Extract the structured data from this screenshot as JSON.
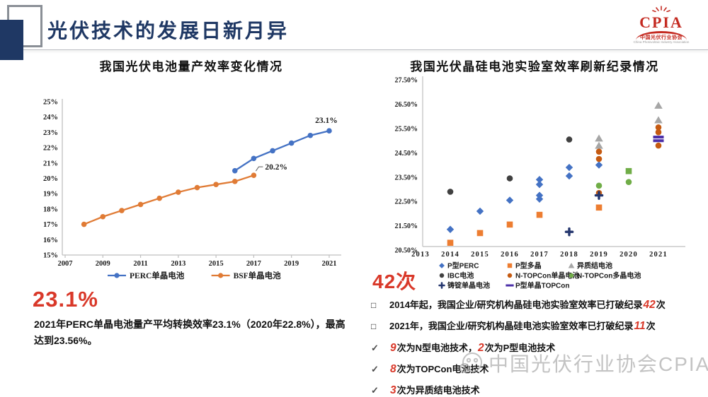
{
  "colors": {
    "accent_red": "#D93829",
    "title_navy": "#1F3864",
    "perc_blue": "#4472C4",
    "bsf_orange": "#E07B35",
    "gray_axis": "#BFBFBF"
  },
  "header": {
    "title": "光伏技术的发展日新月异",
    "logo": {
      "word": "CPIA",
      "caption_cn": "中国光伏行业协会",
      "caption_en": "China Photovoltaic Industry Association"
    }
  },
  "left_panel": {
    "chart_title": "我国光伏电池量产效率变化情况",
    "highlight": "23.1%",
    "description": "2021年PERC单晶电池量产平均转换效率23.1%（2020年22.8%），最高达到23.56%。"
  },
  "right_panel": {
    "chart_title": "我国光伏晶硅电池实验室效率刷新纪录情况",
    "highlight": "42次",
    "bullets": [
      {
        "marker": "□",
        "segments": [
          {
            "text": "2014年起，我国企业/研究机构晶硅电池实验室效率已打破纪录"
          },
          {
            "text": "42",
            "em": true
          },
          {
            "text": "次"
          }
        ]
      },
      {
        "marker": "□",
        "segments": [
          {
            "text": "2021年，我国企业/研究机构晶硅电池实验室效率已打破纪录"
          },
          {
            "text": "11",
            "em": true
          },
          {
            "text": "次"
          }
        ]
      },
      {
        "marker": "✓",
        "segments": [
          {
            "text": "9",
            "em": true
          },
          {
            "text": "次为N型电池技术，"
          },
          {
            "text": "2",
            "em": true
          },
          {
            "text": "次为P型电池技术"
          }
        ]
      },
      {
        "marker": "✓",
        "segments": [
          {
            "text": "8",
            "em": true
          },
          {
            "text": "次为TOPCon电池技术"
          }
        ]
      },
      {
        "marker": "✓",
        "segments": [
          {
            "text": "3",
            "em": true
          },
          {
            "text": "次为异质结电池技术"
          }
        ]
      }
    ]
  },
  "watermark": "中国光伏行业协会CPIA",
  "chart_data": [
    {
      "type": "line",
      "title": "我国光伏电池量产效率变化情况",
      "xlabel": "",
      "ylabel": "",
      "ylim": [
        15,
        25
      ],
      "xlim": [
        2007,
        2021
      ],
      "grid": false,
      "legend_position": "bottom",
      "yticks": [
        {
          "v": 25,
          "label": "25%"
        },
        {
          "v": 24,
          "label": "24%"
        },
        {
          "v": 23,
          "label": "23%"
        },
        {
          "v": 22,
          "label": "22%"
        },
        {
          "v": 21,
          "label": "21%"
        },
        {
          "v": 20,
          "label": "20%"
        },
        {
          "v": 19,
          "label": "19%"
        },
        {
          "v": 18,
          "label": "18%"
        },
        {
          "v": 17,
          "label": "17%"
        },
        {
          "v": 16,
          "label": "16%"
        },
        {
          "v": 15,
          "label": "15%"
        }
      ],
      "xticks": [
        {
          "v": 2007,
          "label": "2007"
        },
        {
          "v": 2009,
          "label": "2009"
        },
        {
          "v": 2011,
          "label": "2011"
        },
        {
          "v": 2013,
          "label": "2013"
        },
        {
          "v": 2015,
          "label": "2015"
        },
        {
          "v": 2017,
          "label": "2017"
        },
        {
          "v": 2019,
          "label": "2019"
        },
        {
          "v": 2021,
          "label": "2021"
        }
      ],
      "series": [
        {
          "name": "PERC单晶电池",
          "color": "#4472C4",
          "points": [
            [
              2016,
              20.5
            ],
            [
              2017,
              21.3
            ],
            [
              2018,
              21.8
            ],
            [
              2019,
              22.3
            ],
            [
              2020,
              22.8
            ],
            [
              2021,
              23.1
            ]
          ]
        },
        {
          "name": "BSF单晶电池",
          "color": "#E07B35",
          "points": [
            [
              2008,
              17.0
            ],
            [
              2009,
              17.5
            ],
            [
              2010,
              17.9
            ],
            [
              2011,
              18.3
            ],
            [
              2012,
              18.7
            ],
            [
              2013,
              19.1
            ],
            [
              2014,
              19.4
            ],
            [
              2015,
              19.6
            ],
            [
              2016,
              19.8
            ],
            [
              2017,
              20.2
            ]
          ]
        }
      ],
      "annotations": [
        {
          "text": "23.1%",
          "x": 2021,
          "y": 23.1,
          "kind": "above"
        },
        {
          "text": "20.2%",
          "x": 2017,
          "y": 20.2,
          "kind": "elbow"
        }
      ]
    },
    {
      "type": "scatter",
      "title": "我国光伏晶硅电池实验室效率刷新纪录情况",
      "xlabel": "",
      "ylabel": "",
      "ylim": [
        20.5,
        27.5
      ],
      "xlim": [
        2013,
        2021
      ],
      "grid": false,
      "legend_position": "bottom",
      "yticks": [
        {
          "v": 27.5,
          "label": "27.50%"
        },
        {
          "v": 26.5,
          "label": "26.50%"
        },
        {
          "v": 25.5,
          "label": "25.50%"
        },
        {
          "v": 24.5,
          "label": "24.50%"
        },
        {
          "v": 23.5,
          "label": "23.50%"
        },
        {
          "v": 22.5,
          "label": "22.50%"
        },
        {
          "v": 21.5,
          "label": "21.50%"
        },
        {
          "v": 20.5,
          "label": "20.50%"
        }
      ],
      "xticks": [
        {
          "v": 2013,
          "label": "2013"
        },
        {
          "v": 2014,
          "label": "2014"
        },
        {
          "v": 2015,
          "label": "2015"
        },
        {
          "v": 2016,
          "label": "2016"
        },
        {
          "v": 2017,
          "label": "2017"
        },
        {
          "v": 2018,
          "label": "2018"
        },
        {
          "v": 2019,
          "label": "2019"
        },
        {
          "v": 2020,
          "label": "2020"
        },
        {
          "v": 2021,
          "label": "2021"
        }
      ],
      "series": [
        {
          "name": "P型PERC",
          "marker": "diamond",
          "color": "#4472C4",
          "points": [
            [
              2014,
              21.35
            ],
            [
              2015,
              22.1
            ],
            [
              2016,
              22.55
            ],
            [
              2017,
              22.6
            ],
            [
              2017,
              22.75
            ],
            [
              2017,
              23.2
            ],
            [
              2017,
              23.4
            ],
            [
              2018,
              23.55
            ],
            [
              2018,
              23.9
            ],
            [
              2019,
              24.0
            ]
          ]
        },
        {
          "name": "P型多晶",
          "marker": "square",
          "color": "#ED7D31",
          "points": [
            [
              2014,
              20.8
            ],
            [
              2015,
              21.2
            ],
            [
              2016,
              21.55
            ],
            [
              2017,
              21.95
            ],
            [
              2019,
              22.25
            ]
          ]
        },
        {
          "name": "异质结电池",
          "marker": "triangle",
          "color": "#A6A6A6",
          "points": [
            [
              2019,
              24.8
            ],
            [
              2019,
              25.1
            ],
            [
              2021,
              25.85
            ],
            [
              2021,
              26.45
            ]
          ]
        },
        {
          "name": "IBC电池",
          "marker": "circle",
          "color": "#404040",
          "points": [
            [
              2014,
              22.9
            ],
            [
              2016,
              23.45
            ],
            [
              2018,
              25.05
            ]
          ]
        },
        {
          "name": "N-TOPCon单晶电池",
          "marker": "circle",
          "color": "#C55A11",
          "points": [
            [
              2019,
              22.85
            ],
            [
              2019,
              24.25
            ],
            [
              2019,
              24.55
            ],
            [
              2021,
              24.8
            ],
            [
              2021,
              25.35
            ],
            [
              2021,
              25.55
            ]
          ]
        },
        {
          "name": "N-TOPCon多晶电池",
          "marker": "circle",
          "color": "#70AD47",
          "points": [
            [
              2019,
              23.15
            ],
            [
              2020,
              23.3
            ],
            [
              2020,
              23.75,
              "square"
            ]
          ]
        },
        {
          "name": "铸锭单晶电池",
          "marker": "cross",
          "color": "#24366E",
          "points": [
            [
              2018,
              21.25
            ],
            [
              2019,
              22.75
            ]
          ]
        },
        {
          "name": "P型单晶TOPCon",
          "marker": "dash",
          "color": "#4B2FA8",
          "points": [
            [
              2021,
              25.0
            ],
            [
              2021,
              25.15
            ]
          ]
        }
      ],
      "legend_rows": [
        [
          0,
          1,
          2
        ],
        [
          3,
          4,
          5
        ],
        [
          6,
          7
        ]
      ]
    }
  ]
}
